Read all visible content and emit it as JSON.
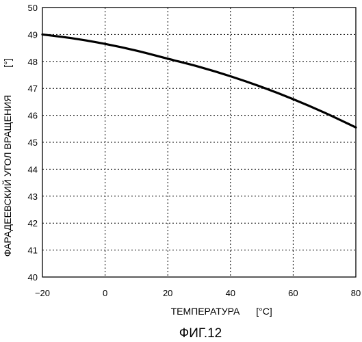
{
  "chart_data": {
    "type": "line",
    "title": "",
    "xlabel": "ТЕМПЕРАТУРА",
    "xunit": "[°C]",
    "ylabel": "ФАРАДЕЕВСКИЙ УГОЛ ВРАЩЕНИЯ",
    "yunit": "[°]",
    "xlim": [
      -20,
      80
    ],
    "ylim": [
      40,
      50
    ],
    "xticks": [
      -20,
      0,
      20,
      40,
      60,
      80
    ],
    "yticks": [
      40,
      41,
      42,
      43,
      44,
      45,
      46,
      47,
      48,
      49,
      50
    ],
    "grid": true,
    "legend": "none",
    "series": [
      {
        "x": [
          -20,
          -10,
          0,
          10,
          20,
          30,
          40,
          50,
          60,
          70,
          80
        ],
        "y": [
          49.0,
          48.85,
          48.65,
          48.4,
          48.1,
          47.8,
          47.45,
          47.05,
          46.6,
          46.1,
          45.55
        ]
      }
    ]
  },
  "caption": "ФИГ.12"
}
